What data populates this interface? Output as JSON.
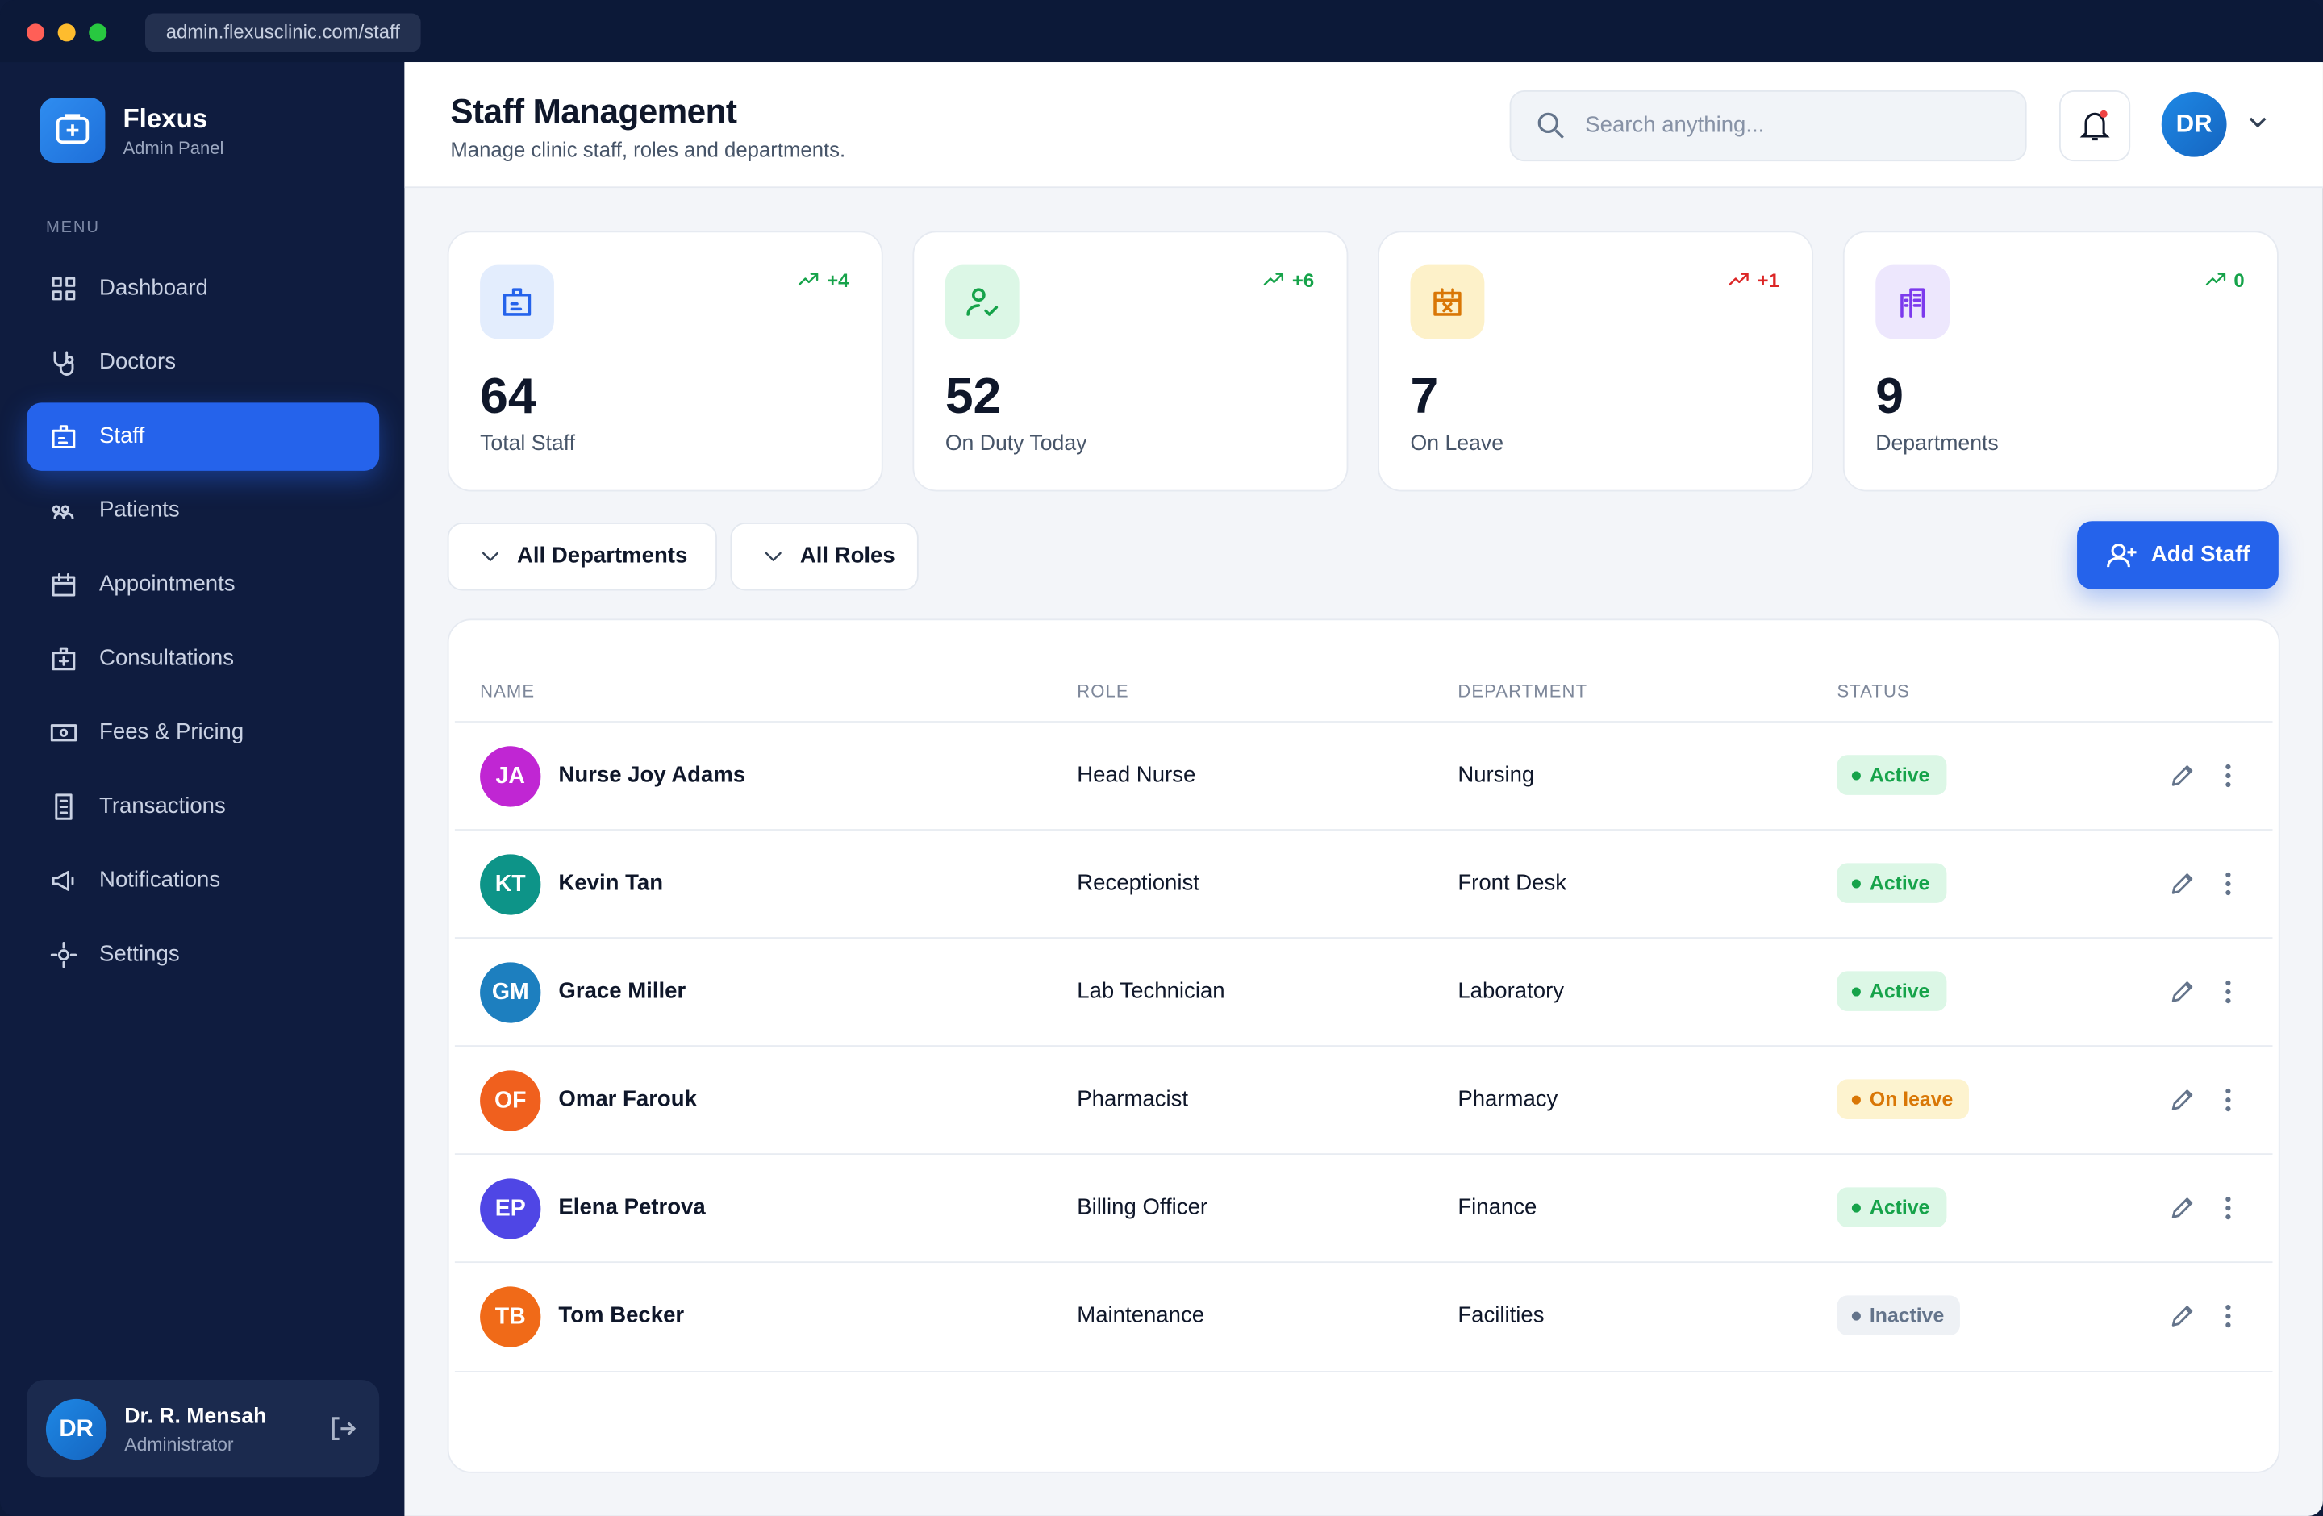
{
  "window": {
    "url": "admin.flexusclinic.com/staff"
  },
  "sidebar": {
    "brand": "Flexus",
    "brand_subtitle": "Admin Panel",
    "menu_label": "MENU",
    "items": [
      {
        "label": "Dashboard"
      },
      {
        "label": "Doctors"
      },
      {
        "label": "Staff",
        "active": true
      },
      {
        "label": "Patients"
      },
      {
        "label": "Appointments"
      },
      {
        "label": "Consultations"
      },
      {
        "label": "Fees & Pricing"
      },
      {
        "label": "Transactions"
      },
      {
        "label": "Notifications"
      },
      {
        "label": "Settings"
      }
    ],
    "user": {
      "initials": "DR",
      "name": "Dr. R. Mensah",
      "role": "Administrator"
    }
  },
  "header": {
    "title": "Staff Management",
    "subtitle": "Manage clinic staff, roles and departments.",
    "search_placeholder": "Search anything...",
    "avatar": "DR"
  },
  "stats": [
    {
      "value": 64,
      "label": "Total Staff",
      "trend": "+4",
      "trend_color": "#16a34a",
      "icon_color": "#2563eb",
      "icon_bg": "#e3edfd"
    },
    {
      "value": 52,
      "label": "On Duty Today",
      "trend": "+6",
      "trend_color": "#16a34a",
      "icon_color": "#16a34a",
      "icon_bg": "#dcf7e6"
    },
    {
      "value": 7,
      "label": "On Leave",
      "trend": "+1",
      "trend_color": "#dc2626",
      "icon_color": "#d97706",
      "icon_bg": "#fdf1c9"
    },
    {
      "value": 9,
      "label": "Departments",
      "trend": "0",
      "trend_color": "#16a34a",
      "icon_color": "#7c3aed",
      "icon_bg": "#ede7fd"
    }
  ],
  "filters": [
    "All Departments",
    "All Roles"
  ],
  "add_button": "Add Staff",
  "table": {
    "headers": [
      "NAME",
      "ROLE",
      "DEPARTMENT",
      "STATUS"
    ],
    "rows": [
      {
        "initials": "JA",
        "name": "Nurse Joy Adams",
        "role": "Head Nurse",
        "department": "Nursing",
        "status": "Active",
        "avatar_color": "#c026d3",
        "status_color": "#16a34a",
        "status_bg": "#dcf7e6"
      },
      {
        "initials": "KT",
        "name": "Kevin Tan",
        "role": "Receptionist",
        "department": "Front Desk",
        "status": "Active",
        "avatar_color": "#0d9488",
        "status_color": "#16a34a",
        "status_bg": "#dcf7e6"
      },
      {
        "initials": "GM",
        "name": "Grace Miller",
        "role": "Lab Technician",
        "department": "Laboratory",
        "status": "Active",
        "avatar_color": "#1d7fbf",
        "status_color": "#16a34a",
        "status_bg": "#dcf7e6"
      },
      {
        "initials": "OF",
        "name": "Omar Farouk",
        "role": "Pharmacist",
        "department": "Pharmacy",
        "status": "On leave",
        "avatar_color": "#f0601e",
        "status_color": "#d97706",
        "status_bg": "#fdf3cf"
      },
      {
        "initials": "EP",
        "name": "Elena Petrova",
        "role": "Billing Officer",
        "department": "Finance",
        "status": "Active",
        "avatar_color": "#4f46e5",
        "status_color": "#16a34a",
        "status_bg": "#dcf7e6"
      },
      {
        "initials": "TB",
        "name": "Tom Becker",
        "role": "Maintenance",
        "department": "Facilities",
        "status": "Inactive",
        "avatar_color": "#f06a18",
        "status_color": "#64748b",
        "status_bg": "#eef1f5"
      }
    ]
  }
}
